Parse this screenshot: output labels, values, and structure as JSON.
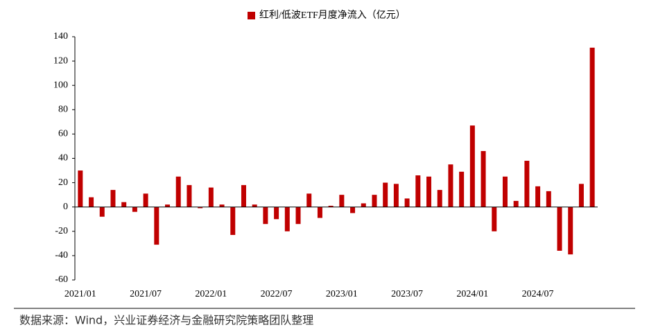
{
  "chart_data": {
    "type": "bar",
    "legend_label": "红利/低波ETF月度净流入（亿元）",
    "source": "数据来源：Wind，兴业证券经济与金融研究院策略团队整理",
    "color": "#c00000",
    "categories": [
      "2021/01",
      null,
      null,
      null,
      null,
      null,
      "2021/07",
      null,
      null,
      null,
      null,
      null,
      "2022/01",
      null,
      null,
      null,
      null,
      null,
      "2022/07",
      null,
      null,
      null,
      null,
      null,
      "2023/01",
      null,
      null,
      null,
      null,
      null,
      "2023/07",
      null,
      null,
      null,
      null,
      null,
      "2024/01",
      null,
      null,
      null,
      null,
      null,
      "2024/07",
      null,
      null,
      null,
      null,
      null
    ],
    "values": [
      30,
      8,
      -8,
      14,
      4,
      -4,
      11,
      -31,
      2,
      25,
      18,
      -1,
      16,
      2,
      -23,
      18,
      2,
      -14,
      -10,
      -20,
      -14,
      11,
      -9,
      1,
      10,
      -5,
      3,
      10,
      20,
      19,
      7,
      26,
      25,
      14,
      35,
      29,
      67,
      46,
      -20,
      25,
      5,
      38,
      17,
      13,
      -36,
      -39,
      19,
      131
    ],
    "ylim": [
      -60,
      140
    ],
    "yticks": [
      -60,
      -40,
      -20,
      0,
      20,
      40,
      60,
      80,
      100,
      120,
      140
    ]
  }
}
